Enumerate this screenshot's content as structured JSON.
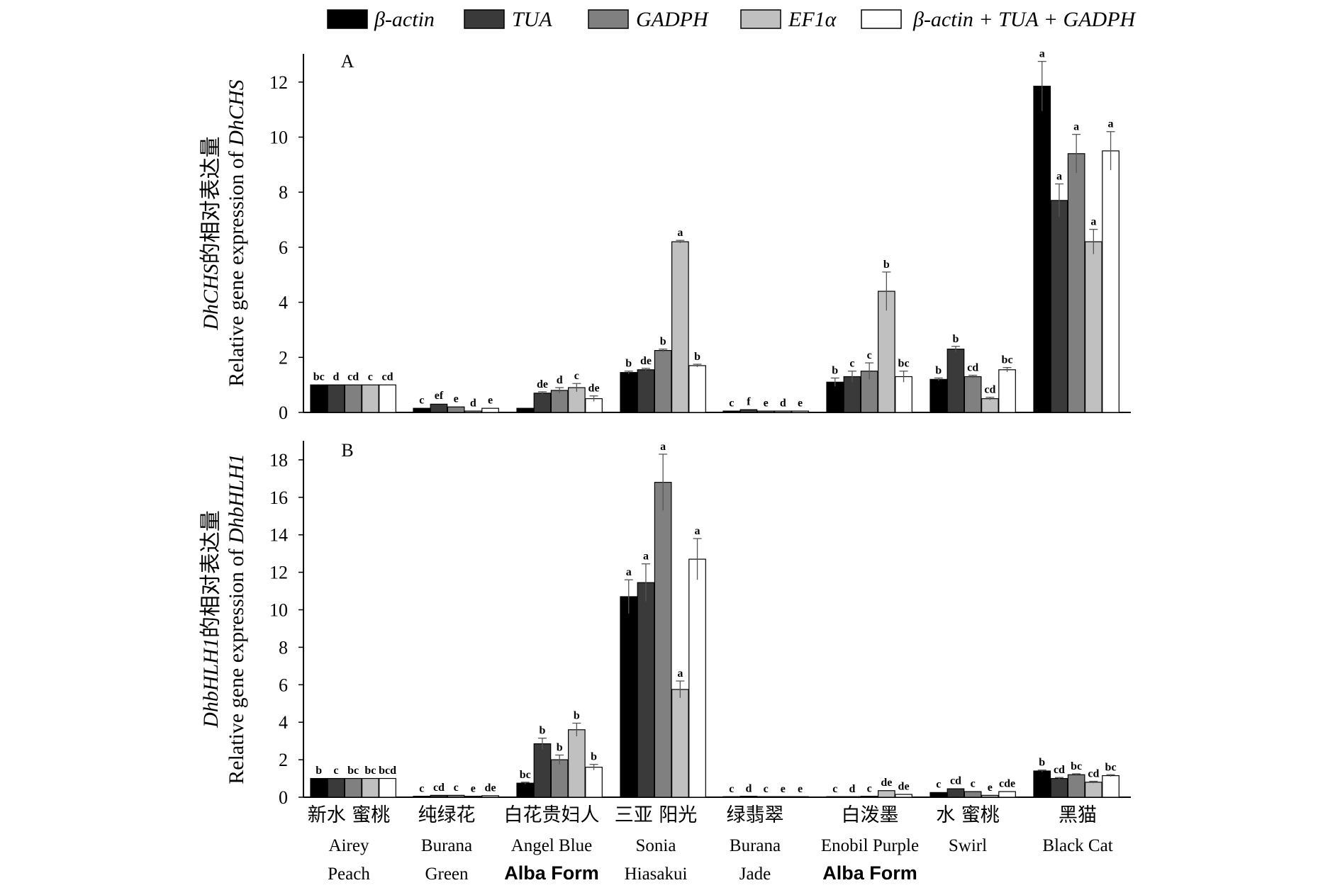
{
  "chart_data": [
    {
      "type": "bar",
      "panel": "A",
      "ylabel_line1_gene": "DhCHS",
      "ylabel_line1_cn": "的相对表达量",
      "ylabel_line2_prefix": "Relative gene expression of ",
      "ylabel_line2_gene": "DhCHS",
      "ylim": [
        0,
        13
      ],
      "yticks": [
        "0",
        "2",
        "4",
        "6",
        "8",
        "10",
        "12"
      ],
      "series": [
        {
          "name": "β-actin",
          "values": [
            1.0,
            0.15,
            0.15,
            1.45,
            0.05,
            1.1,
            1.2,
            11.85
          ],
          "errors": [
            0.02,
            0.02,
            0.02,
            0.05,
            0.01,
            0.15,
            0.05,
            0.9
          ]
        },
        {
          "name": "TUA",
          "values": [
            1.0,
            0.3,
            0.7,
            1.55,
            0.1,
            1.3,
            2.3,
            7.7
          ],
          "errors": [
            0.02,
            0.03,
            0.05,
            0.05,
            0.01,
            0.2,
            0.1,
            0.6
          ]
        },
        {
          "name": "GADPH",
          "values": [
            1.0,
            0.2,
            0.8,
            2.25,
            0.05,
            1.5,
            1.3,
            9.4
          ],
          "errors": [
            0.02,
            0.02,
            0.1,
            0.05,
            0.01,
            0.3,
            0.05,
            0.7
          ]
        },
        {
          "name": "EF1α",
          "values": [
            1.0,
            0.05,
            0.9,
            6.2,
            0.05,
            4.4,
            0.5,
            6.2
          ],
          "errors": [
            0.02,
            0.01,
            0.15,
            0.05,
            0.01,
            0.7,
            0.05,
            0.45
          ]
        },
        {
          "name": "β-actin + TUA + GADPH",
          "values": [
            1.0,
            0.15,
            0.5,
            1.7,
            0.05,
            1.3,
            1.55,
            9.5
          ],
          "errors": [
            0.02,
            0.02,
            0.1,
            0.05,
            0.01,
            0.2,
            0.08,
            0.7
          ]
        }
      ],
      "sig_letters": [
        [
          "bc",
          "c",
          "",
          "b",
          "c",
          "b",
          "b",
          "a"
        ],
        [
          "d",
          "ef",
          "de",
          "de",
          "f",
          "c",
          "b",
          "a"
        ],
        [
          "cd",
          "e",
          "d",
          "b",
          "e",
          "c",
          "cd",
          "a"
        ],
        [
          "c",
          "d",
          "c",
          "a",
          "d",
          "b",
          "cd",
          "a"
        ],
        [
          "cd",
          "e",
          "de",
          "b",
          "e",
          "bc",
          "bc",
          "a"
        ]
      ]
    },
    {
      "type": "bar",
      "panel": "B",
      "ylabel_line1_gene": "DhbHLH1",
      "ylabel_line1_cn": "的相对表达量",
      "ylabel_line2_prefix": "Relative gene expression of ",
      "ylabel_line2_gene": "DhbHLH1",
      "ylim": [
        0,
        19
      ],
      "yticks": [
        "0",
        "2",
        "4",
        "6",
        "8",
        "10",
        "12",
        "14",
        "16",
        "18"
      ],
      "series": [
        {
          "name": "β-actin",
          "values": [
            1.0,
            0.05,
            0.75,
            10.7,
            0.03,
            0.03,
            0.25,
            1.4
          ],
          "errors": [
            0.02,
            0.01,
            0.05,
            0.9,
            0.01,
            0.01,
            0.03,
            0.05
          ]
        },
        {
          "name": "TUA",
          "values": [
            1.0,
            0.1,
            2.85,
            11.45,
            0.05,
            0.03,
            0.45,
            1.0
          ],
          "errors": [
            0.02,
            0.02,
            0.3,
            1.0,
            0.01,
            0.01,
            0.03,
            0.05
          ]
        },
        {
          "name": "GADPH",
          "values": [
            1.0,
            0.1,
            2.0,
            16.8,
            0.03,
            0.05,
            0.3,
            1.2
          ],
          "errors": [
            0.02,
            0.01,
            0.25,
            1.5,
            0.01,
            0.01,
            0.03,
            0.05
          ]
        },
        {
          "name": "EF1α",
          "values": [
            1.0,
            0.05,
            3.6,
            5.75,
            0.03,
            0.35,
            0.1,
            0.8
          ],
          "errors": [
            0.02,
            0.01,
            0.35,
            0.45,
            0.01,
            0.03,
            0.02,
            0.05
          ]
        },
        {
          "name": "β-actin + TUA + GADPH",
          "values": [
            1.0,
            0.08,
            1.6,
            12.7,
            0.03,
            0.15,
            0.3,
            1.15
          ],
          "errors": [
            0.02,
            0.01,
            0.15,
            1.1,
            0.01,
            0.02,
            0.03,
            0.05
          ]
        }
      ],
      "sig_letters": [
        [
          "b",
          "c",
          "bc",
          "a",
          "c",
          "c",
          "c",
          "b"
        ],
        [
          "c",
          "cd",
          "b",
          "a",
          "d",
          "d",
          "cd",
          "cd"
        ],
        [
          "bc",
          "c",
          "b",
          "a",
          "c",
          "c",
          "c",
          "bc"
        ],
        [
          "bc",
          "e",
          "b",
          "a",
          "e",
          "de",
          "e",
          "cd"
        ],
        [
          "bcd",
          "de",
          "b",
          "a",
          "e",
          "de",
          "cde",
          "bc"
        ]
      ]
    }
  ],
  "categories": [
    {
      "cn": "新水 蜜桃",
      "en1": "Airey",
      "en2": "Peach",
      "en2_bold": false
    },
    {
      "cn": "纯绿花",
      "en1": "Burana",
      "en2": "Green",
      "en2_bold": false
    },
    {
      "cn": "白花贵妇人",
      "en1": "Angel Blue",
      "en2": "Alba Form",
      "en2_bold": true
    },
    {
      "cn": "三亚 阳光",
      "en1": "Sonia",
      "en2": "Hiasakui",
      "en2_bold": false
    },
    {
      "cn": "绿翡翠",
      "en1": "Burana",
      "en2": "Jade",
      "en2_bold": false
    },
    {
      "cn": "白泼墨",
      "en1": "Enobil Purple",
      "en2": "Alba Form",
      "en2_bold": true
    },
    {
      "cn": "水 蜜桃",
      "en1": "Swirl",
      "en2": "",
      "en2_bold": false
    },
    {
      "cn": "黑猫",
      "en1": "Black Cat",
      "en2": "",
      "en2_bold": false
    }
  ],
  "legend": [
    {
      "label": "β-actin",
      "color": "#000000"
    },
    {
      "label": "TUA",
      "color": "#3a3a3a"
    },
    {
      "label": "GADPH",
      "color": "#808080"
    },
    {
      "label": "EF1α",
      "color": "#c0c0c0"
    },
    {
      "label": "β-actin + TUA + GADPH",
      "color": "#ffffff"
    }
  ]
}
